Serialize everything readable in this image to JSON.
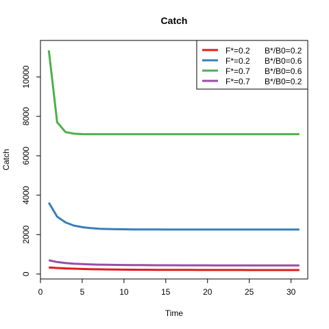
{
  "chart_data": {
    "type": "line",
    "title": "Catch",
    "xlabel": "Time",
    "ylabel": "Catch",
    "xlim": [
      0,
      32
    ],
    "ylim": [
      -250,
      11850
    ],
    "xticks": [
      0,
      5,
      10,
      15,
      20,
      25,
      30
    ],
    "yticks": [
      0,
      2000,
      4000,
      6000,
      8000,
      10000
    ],
    "grid": false,
    "legend_position": "top-right",
    "x": [
      1,
      2,
      3,
      4,
      5,
      6,
      7,
      8,
      9,
      10,
      11,
      12,
      13,
      14,
      15,
      16,
      17,
      18,
      19,
      20,
      21,
      22,
      23,
      24,
      25,
      26,
      27,
      28,
      29,
      30,
      31
    ],
    "series": [
      {
        "label_f": "F*=0.2",
        "label_b": "B*/B0=0.2",
        "color": "#e41a1c",
        "values": [
          330,
          305,
          285,
          270,
          258,
          248,
          240,
          233,
          228,
          224,
          220,
          217,
          215,
          213,
          211,
          210,
          209,
          208,
          207,
          206,
          205,
          205,
          204,
          204,
          203,
          203,
          203,
          202,
          202,
          202,
          202
        ]
      },
      {
        "label_f": "F*=0.2",
        "label_b": "B*/B0=0.6",
        "color": "#377eb8",
        "values": [
          3620,
          2910,
          2620,
          2460,
          2380,
          2330,
          2300,
          2285,
          2275,
          2270,
          2265,
          2262,
          2260,
          2259,
          2258,
          2258,
          2257,
          2257,
          2257,
          2256,
          2256,
          2256,
          2256,
          2256,
          2256,
          2256,
          2256,
          2256,
          2256,
          2256,
          2256
        ]
      },
      {
        "label_f": "F*=0.7",
        "label_b": "B*/B0=0.6",
        "color": "#4daf4a",
        "values": [
          11350,
          7700,
          7200,
          7120,
          7100,
          7095,
          7093,
          7092,
          7092,
          7092,
          7092,
          7092,
          7092,
          7092,
          7092,
          7092,
          7092,
          7092,
          7092,
          7092,
          7092,
          7092,
          7092,
          7092,
          7092,
          7092,
          7092,
          7092,
          7092,
          7092,
          7092
        ]
      },
      {
        "label_f": "F*=0.7",
        "label_b": "B*/B0=0.2",
        "color": "#984ea3",
        "values": [
          700,
          610,
          560,
          525,
          505,
          490,
          478,
          470,
          463,
          458,
          454,
          451,
          449,
          447,
          445,
          444,
          443,
          442,
          441,
          441,
          440,
          440,
          440,
          439,
          439,
          439,
          439,
          439,
          439,
          439,
          439
        ]
      }
    ]
  }
}
